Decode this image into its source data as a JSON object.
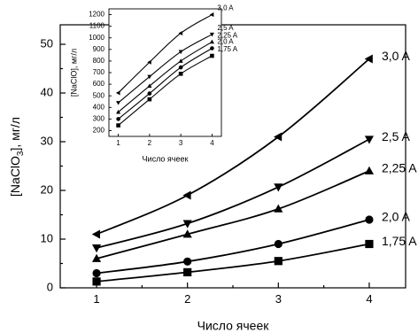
{
  "chart_data": [
    {
      "type": "line",
      "xlabel": "Число ячеек",
      "ylabel_base": "[NaClO",
      "ylabel_sub": "3",
      "ylabel_tail": "], мг/л",
      "x": [
        1,
        2,
        3,
        4
      ],
      "xlim": [
        0.6,
        4.4
      ],
      "ylim": [
        0,
        54
      ],
      "xticks": [
        "1",
        "2",
        "3",
        "4"
      ],
      "yticks": [
        "0",
        "10",
        "20",
        "30",
        "40",
        "50"
      ],
      "ytick_values": [
        0,
        10,
        20,
        30,
        40,
        50
      ],
      "xtick_values": [
        1,
        2,
        3,
        4
      ],
      "series": [
        {
          "name": "1,75 A",
          "marker": "square",
          "values": [
            1.3,
            3.2,
            5.5,
            9.0
          ]
        },
        {
          "name": "2,0 A",
          "marker": "circle",
          "values": [
            3.0,
            5.4,
            9.0,
            14.0
          ]
        },
        {
          "name": "2,25 A",
          "marker": "triangle-up",
          "values": [
            6.0,
            11.0,
            16.2,
            24.0
          ]
        },
        {
          "name": "2,5 A",
          "marker": "triangle-down",
          "values": [
            8.2,
            13.2,
            20.7,
            30.5
          ]
        },
        {
          "name": "3,0 A",
          "marker": "triangle-left",
          "values": [
            11.0,
            19.0,
            31.0,
            47.0
          ]
        }
      ]
    },
    {
      "type": "line",
      "xlabel": "Число ячеек",
      "ylabel": "[NaClO], мг/л",
      "x": [
        1,
        2,
        3,
        4
      ],
      "xlim": [
        0.7,
        4.3
      ],
      "ylim": [
        150,
        1250
      ],
      "xticks": [
        "1",
        "2",
        "3",
        "4"
      ],
      "yticks": [
        "200",
        "300",
        "400",
        "500",
        "600",
        "700",
        "800",
        "900",
        "1000",
        "1100",
        "1200"
      ],
      "ytick_values": [
        200,
        300,
        400,
        500,
        600,
        700,
        800,
        900,
        1000,
        1100,
        1200
      ],
      "xtick_values": [
        1,
        2,
        3,
        4
      ],
      "series": [
        {
          "name": "1,75 A",
          "marker": "square",
          "values": [
            245,
            470,
            690,
            845
          ]
        },
        {
          "name": "2,0 A",
          "marker": "circle",
          "values": [
            300,
            520,
            745,
            910
          ]
        },
        {
          "name": "2,25 A",
          "marker": "triangle-up",
          "values": [
            360,
            585,
            800,
            965
          ]
        },
        {
          "name": "2,5 A",
          "marker": "triangle-down",
          "values": [
            440,
            665,
            880,
            1030
          ]
        },
        {
          "name": "3,0 A",
          "marker": "triangle-left",
          "values": [
            525,
            790,
            1040,
            1200
          ]
        }
      ]
    }
  ]
}
